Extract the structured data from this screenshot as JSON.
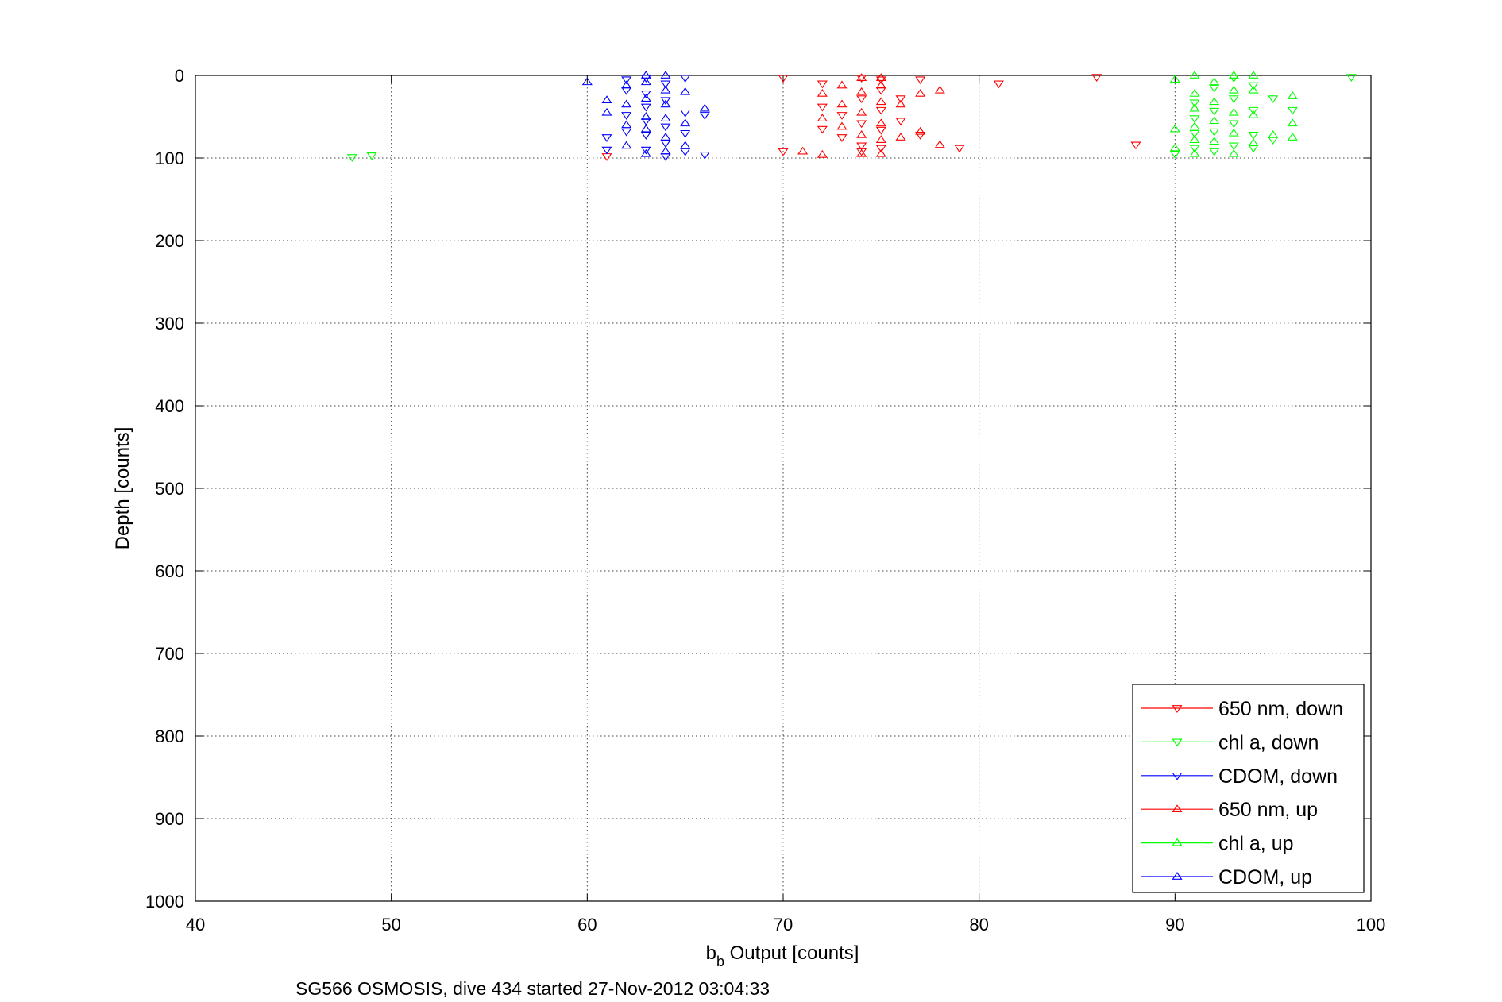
{
  "chart_data": {
    "type": "scatter",
    "title": "",
    "xlabel_main": "b",
    "xlabel_sub": "b",
    "xlabel_rest": " Output [counts]",
    "ylabel": "Depth [counts]",
    "caption": "SG566 OSMOSIS, dive 434 started 27-Nov-2012 03:04:33",
    "xlim": [
      40,
      100
    ],
    "ylim": [
      0,
      1000
    ],
    "y_reversed": true,
    "grid": true,
    "legend_position": "bottom-right",
    "xticks": [
      "40",
      "50",
      "60",
      "70",
      "80",
      "90",
      "100"
    ],
    "yticks": [
      "0",
      "100",
      "200",
      "300",
      "400",
      "500",
      "600",
      "700",
      "800",
      "900",
      "1000"
    ],
    "series": [
      {
        "name": "650 nm, down",
        "color": "#ff0000",
        "marker": "triangle-down",
        "points": [
          [
            61,
            98
          ],
          [
            70,
            3
          ],
          [
            70,
            92
          ],
          [
            72,
            10
          ],
          [
            72,
            38
          ],
          [
            72,
            65
          ],
          [
            73,
            48
          ],
          [
            73,
            75
          ],
          [
            74,
            3
          ],
          [
            74,
            28
          ],
          [
            74,
            58
          ],
          [
            74,
            85
          ],
          [
            74,
            92
          ],
          [
            75,
            5
          ],
          [
            75,
            18
          ],
          [
            75,
            42
          ],
          [
            75,
            66
          ],
          [
            75,
            88
          ],
          [
            76,
            28
          ],
          [
            76,
            55
          ],
          [
            77,
            5
          ],
          [
            77,
            72
          ],
          [
            79,
            88
          ],
          [
            81,
            10
          ],
          [
            86,
            2
          ],
          [
            88,
            84
          ]
        ]
      },
      {
        "name": "chl a, down",
        "color": "#00ff00",
        "marker": "triangle-down",
        "points": [
          [
            48,
            99
          ],
          [
            49,
            97
          ],
          [
            90,
            95
          ],
          [
            91,
            33
          ],
          [
            91,
            52
          ],
          [
            91,
            70
          ],
          [
            91,
            88
          ],
          [
            92,
            15
          ],
          [
            92,
            43
          ],
          [
            92,
            68
          ],
          [
            92,
            92
          ],
          [
            93,
            3
          ],
          [
            93,
            28
          ],
          [
            93,
            58
          ],
          [
            93,
            85
          ],
          [
            94,
            12
          ],
          [
            94,
            42
          ],
          [
            94,
            72
          ],
          [
            94,
            88
          ],
          [
            95,
            28
          ],
          [
            95,
            78
          ],
          [
            96,
            42
          ],
          [
            99,
            2
          ]
        ]
      },
      {
        "name": "CDOM, down",
        "color": "#0000ff",
        "marker": "triangle-down",
        "points": [
          [
            61,
            75
          ],
          [
            61,
            90
          ],
          [
            62,
            5
          ],
          [
            62,
            18
          ],
          [
            62,
            48
          ],
          [
            62,
            68
          ],
          [
            63,
            3
          ],
          [
            63,
            22
          ],
          [
            63,
            38
          ],
          [
            63,
            55
          ],
          [
            63,
            72
          ],
          [
            63,
            90
          ],
          [
            64,
            10
          ],
          [
            64,
            30
          ],
          [
            64,
            62
          ],
          [
            64,
            82
          ],
          [
            64,
            98
          ],
          [
            65,
            3
          ],
          [
            65,
            45
          ],
          [
            65,
            70
          ],
          [
            65,
            92
          ],
          [
            66,
            48
          ],
          [
            66,
            96
          ]
        ]
      },
      {
        "name": "650 nm, up",
        "color": "#ff0000",
        "marker": "triangle-up",
        "points": [
          [
            71,
            92
          ],
          [
            72,
            22
          ],
          [
            72,
            52
          ],
          [
            72,
            96
          ],
          [
            73,
            12
          ],
          [
            73,
            35
          ],
          [
            73,
            62
          ],
          [
            74,
            3
          ],
          [
            74,
            20
          ],
          [
            74,
            45
          ],
          [
            74,
            72
          ],
          [
            74,
            95
          ],
          [
            75,
            3
          ],
          [
            75,
            12
          ],
          [
            75,
            32
          ],
          [
            75,
            58
          ],
          [
            75,
            78
          ],
          [
            75,
            95
          ],
          [
            76,
            35
          ],
          [
            76,
            75
          ],
          [
            77,
            22
          ],
          [
            77,
            68
          ],
          [
            78,
            18
          ],
          [
            78,
            84
          ]
        ]
      },
      {
        "name": "chl a, up",
        "color": "#00ff00",
        "marker": "triangle-up",
        "points": [
          [
            90,
            5
          ],
          [
            90,
            65
          ],
          [
            90,
            88
          ],
          [
            91,
            0
          ],
          [
            91,
            22
          ],
          [
            91,
            40
          ],
          [
            91,
            62
          ],
          [
            91,
            78
          ],
          [
            91,
            95
          ],
          [
            92,
            8
          ],
          [
            92,
            32
          ],
          [
            92,
            55
          ],
          [
            92,
            80
          ],
          [
            93,
            0
          ],
          [
            93,
            18
          ],
          [
            93,
            45
          ],
          [
            93,
            70
          ],
          [
            93,
            95
          ],
          [
            94,
            0
          ],
          [
            94,
            18
          ],
          [
            94,
            48
          ],
          [
            94,
            82
          ],
          [
            95,
            72
          ],
          [
            96,
            25
          ],
          [
            96,
            58
          ],
          [
            96,
            75
          ]
        ]
      },
      {
        "name": "CDOM, up",
        "color": "#0000ff",
        "marker": "triangle-up",
        "points": [
          [
            60,
            8
          ],
          [
            61,
            30
          ],
          [
            61,
            45
          ],
          [
            62,
            12
          ],
          [
            62,
            35
          ],
          [
            62,
            60
          ],
          [
            62,
            85
          ],
          [
            63,
            0
          ],
          [
            63,
            8
          ],
          [
            63,
            28
          ],
          [
            63,
            50
          ],
          [
            63,
            65
          ],
          [
            63,
            95
          ],
          [
            64,
            0
          ],
          [
            64,
            18
          ],
          [
            64,
            35
          ],
          [
            64,
            52
          ],
          [
            64,
            75
          ],
          [
            64,
            92
          ],
          [
            65,
            20
          ],
          [
            65,
            58
          ],
          [
            65,
            85
          ],
          [
            66,
            40
          ]
        ]
      }
    ]
  }
}
